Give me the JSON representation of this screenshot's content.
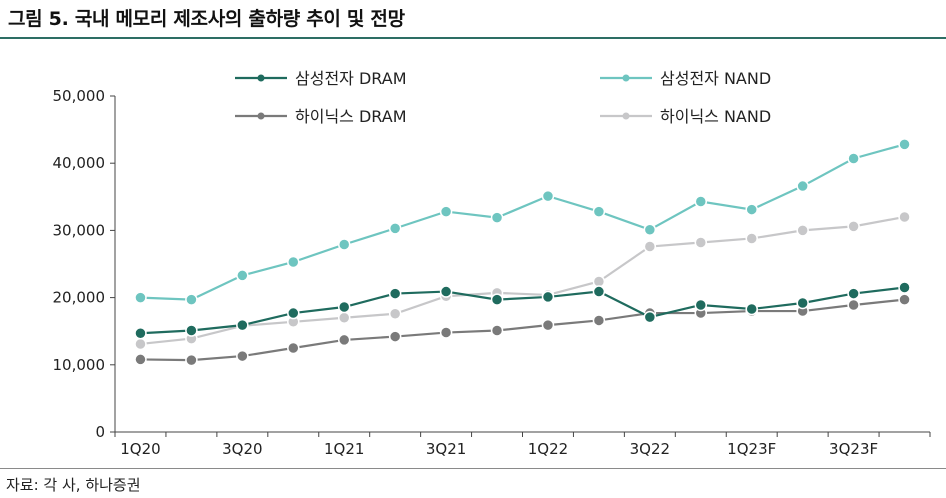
{
  "figure": {
    "title": "그림 5. 국내 메모리 제조사의 출하량 추이 및 전망",
    "source": "자료: 각 사, 하나증권"
  },
  "chart_data": {
    "type": "line",
    "x": [
      "1Q20",
      "2Q20",
      "3Q20",
      "4Q20",
      "1Q21",
      "2Q21",
      "3Q21",
      "4Q21",
      "1Q22",
      "2Q22",
      "3Q22",
      "4Q22",
      "1Q23F",
      "2Q23F",
      "3Q23F",
      "4Q23F"
    ],
    "xtick_labels": [
      "1Q20",
      "3Q20",
      "1Q21",
      "3Q21",
      "1Q22",
      "3Q22",
      "1Q23F",
      "3Q23F"
    ],
    "xtick_positions": [
      "1Q20",
      "3Q20",
      "1Q21",
      "3Q21",
      "1Q22",
      "3Q22",
      "1Q23F",
      "3Q23F"
    ],
    "ylim": [
      0,
      50000
    ],
    "yticks": [
      0,
      10000,
      20000,
      30000,
      40000,
      50000
    ],
    "ytick_labels": [
      "0",
      "10,000",
      "20,000",
      "30,000",
      "40,000",
      "50,000"
    ],
    "grid": false,
    "legend_position": "top",
    "series": [
      {
        "name": "삼성전자 DRAM",
        "color": "#1f6b5e",
        "values": [
          14700,
          15100,
          15900,
          17700,
          18600,
          20600,
          20900,
          19700,
          20100,
          20900,
          17100,
          18900,
          18300,
          19200,
          20600,
          21500
        ]
      },
      {
        "name": "삼성전자 NAND",
        "color": "#6ec5c0",
        "values": [
          20000,
          19700,
          23300,
          25300,
          27900,
          30300,
          32800,
          31900,
          35100,
          32800,
          30100,
          34300,
          33100,
          36600,
          40700,
          42800
        ]
      },
      {
        "name": "하이닉스 DRAM",
        "color": "#7a7a7a",
        "values": [
          10800,
          10700,
          11300,
          12500,
          13700,
          14200,
          14800,
          15100,
          15900,
          16600,
          17700,
          17700,
          18000,
          18000,
          18900,
          19700
        ]
      },
      {
        "name": "하이닉스 NAND",
        "color": "#c7c7c9",
        "values": [
          13100,
          13900,
          15800,
          16400,
          17000,
          17600,
          20200,
          20700,
          20400,
          22400,
          27600,
          28200,
          28800,
          30000,
          30600,
          32000
        ]
      }
    ]
  }
}
